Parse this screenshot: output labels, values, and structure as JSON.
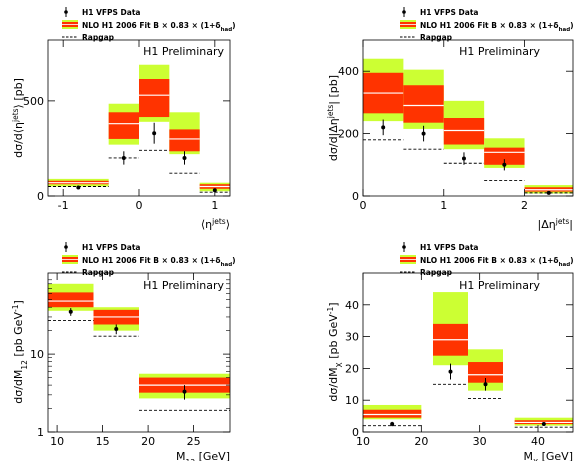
{
  "colors": {
    "outer_band": "#ccff33",
    "inner_band": "#ff3300",
    "central_line": "#ffffff",
    "data_marker": "#000000",
    "rapgap": "#000000"
  },
  "legend_labels": {
    "data": "H1 VFPS Data",
    "nlo": "NLO H1 2006 Fit B × 0.83 × (1+δ",
    "nlo_sub": "had",
    "nlo_close": ")",
    "rapgap": "Rapgap"
  },
  "chart_data": [
    {
      "id": "eta",
      "type": "histogram",
      "annotation": "H1 Preliminary",
      "xlabel": {
        "pre": "⟨η",
        "sup": "jets",
        "post": "⟩"
      },
      "ylabel": {
        "pre": "dσ/d⟨η",
        "sup": "jets",
        "post": "⟩ [pb]"
      },
      "xlim": [
        -1.2,
        1.2
      ],
      "ylim": [
        0,
        820
      ],
      "ylog": false,
      "xticks": [
        -1,
        0,
        1
      ],
      "yticks": [
        0,
        500
      ],
      "bins": [
        {
          "lo": -1.2,
          "hi": -0.4,
          "rapgap": 50,
          "nlo": 70,
          "nlo_lo2": 50,
          "nlo_hi2": 90,
          "nlo_lo1": 62,
          "nlo_hi1": 80,
          "data": 45,
          "err": 5
        },
        {
          "lo": -0.4,
          "hi": 0.0,
          "rapgap": 200,
          "nlo": 380,
          "nlo_lo2": 270,
          "nlo_hi2": 485,
          "nlo_lo1": 300,
          "nlo_hi1": 440,
          "data": 200,
          "err": 35
        },
        {
          "lo": 0.0,
          "hi": 0.4,
          "rapgap": 240,
          "nlo": 530,
          "nlo_lo2": 390,
          "nlo_hi2": 690,
          "nlo_lo1": 415,
          "nlo_hi1": 615,
          "data": 330,
          "err": 55
        },
        {
          "lo": 0.4,
          "hi": 0.8,
          "rapgap": 120,
          "nlo": 300,
          "nlo_lo2": 220,
          "nlo_hi2": 440,
          "nlo_lo1": 235,
          "nlo_hi1": 350,
          "data": 200,
          "err": 35
        },
        {
          "lo": 0.8,
          "hi": 1.2,
          "rapgap": 20,
          "nlo": 50,
          "nlo_lo2": 25,
          "nlo_hi2": 70,
          "nlo_lo1": 38,
          "nlo_hi1": 62,
          "data": 30,
          "err": 8
        }
      ]
    },
    {
      "id": "deta",
      "type": "histogram",
      "annotation": "H1 Preliminary",
      "xlabel": {
        "pre": "|Δη",
        "sup": "jets",
        "post": "|"
      },
      "ylabel": {
        "pre": "dσ/d|Δη",
        "sup": "jets",
        "post": "| [pb]"
      },
      "xlim": [
        0,
        2.6
      ],
      "ylim": [
        0,
        500
      ],
      "ylog": false,
      "xticks": [
        0,
        1,
        2
      ],
      "yticks": [
        0,
        200,
        400
      ],
      "bins": [
        {
          "lo": 0.0,
          "hi": 0.5,
          "rapgap": 180,
          "nlo": 330,
          "nlo_lo2": 240,
          "nlo_hi2": 440,
          "nlo_lo1": 265,
          "nlo_hi1": 395,
          "data": 220,
          "err": 25
        },
        {
          "lo": 0.5,
          "hi": 1.0,
          "rapgap": 150,
          "nlo": 290,
          "nlo_lo2": 215,
          "nlo_hi2": 405,
          "nlo_lo1": 235,
          "nlo_hi1": 355,
          "data": 200,
          "err": 25
        },
        {
          "lo": 1.0,
          "hi": 1.5,
          "rapgap": 105,
          "nlo": 210,
          "nlo_lo2": 150,
          "nlo_hi2": 305,
          "nlo_lo1": 165,
          "nlo_hi1": 250,
          "data": 120,
          "err": 20
        },
        {
          "lo": 1.5,
          "hi": 2.0,
          "rapgap": 50,
          "nlo": 140,
          "nlo_lo2": 90,
          "nlo_hi2": 185,
          "nlo_lo1": 100,
          "nlo_hi1": 155,
          "data": 100,
          "err": 18
        },
        {
          "lo": 2.0,
          "hi": 2.6,
          "rapgap": 10,
          "nlo": 20,
          "nlo_lo2": 8,
          "nlo_hi2": 35,
          "nlo_lo1": 14,
          "nlo_hi1": 28,
          "data": 10,
          "err": 4
        }
      ]
    },
    {
      "id": "m12",
      "type": "histogram",
      "annotation": "H1 Preliminary",
      "xlabel": {
        "pre": "M",
        "sub": "12",
        "post": " [GeV]"
      },
      "ylabel": {
        "pre": "dσ/dM",
        "sub": "12",
        "post": " [pb GeV",
        "sup": "-1",
        "post2": "]"
      },
      "xlim": [
        9,
        29
      ],
      "ylim": [
        1,
        110
      ],
      "ylog": true,
      "xticks": [
        10,
        15,
        20,
        25
      ],
      "yticks": [
        1,
        10
      ],
      "bins": [
        {
          "lo": 9,
          "hi": 14,
          "rapgap": 27,
          "nlo": 48,
          "nlo_lo2": 36,
          "nlo_hi2": 80,
          "nlo_lo1": 40,
          "nlo_hi1": 62,
          "data": 35,
          "err": 4
        },
        {
          "lo": 14,
          "hi": 19,
          "rapgap": 17,
          "nlo": 30,
          "nlo_lo2": 20,
          "nlo_hi2": 40,
          "nlo_lo1": 24,
          "nlo_hi1": 37,
          "data": 21,
          "err": 3
        },
        {
          "lo": 19,
          "hi": 29,
          "rapgap": 1.9,
          "nlo": 4.0,
          "nlo_lo2": 2.7,
          "nlo_hi2": 5.6,
          "nlo_lo1": 3.2,
          "nlo_hi1": 5.0,
          "data": 3.3,
          "err": 0.7
        }
      ]
    },
    {
      "id": "mx",
      "type": "histogram",
      "annotation": "H1 Preliminary",
      "xlabel": {
        "pre": "M",
        "sub": "X",
        "post": " [GeV]"
      },
      "ylabel": {
        "pre": "dσ/dM",
        "sub": "X",
        "post": " [pb GeV",
        "sup": "-1",
        "post2": "]"
      },
      "xlim": [
        10,
        46
      ],
      "ylim": [
        0,
        50
      ],
      "ylog": false,
      "xticks": [
        10,
        20,
        30,
        40
      ],
      "yticks": [
        0,
        10,
        20,
        30,
        40
      ],
      "bins": [
        {
          "lo": 10,
          "hi": 20,
          "rapgap": 2.0,
          "nlo": 5.5,
          "nlo_lo2": 4.0,
          "nlo_hi2": 8.5,
          "nlo_lo1": 4.5,
          "nlo_hi1": 7.0,
          "data": 2.5,
          "err": 0.7
        },
        {
          "lo": 22,
          "hi": 28,
          "rapgap": 15.0,
          "nlo": 29.0,
          "nlo_lo2": 21.0,
          "nlo_hi2": 44.0,
          "nlo_lo1": 24.0,
          "nlo_hi1": 34.0,
          "data": 19.0,
          "err": 2.5
        },
        {
          "lo": 28,
          "hi": 34,
          "rapgap": 10.5,
          "nlo": 18.0,
          "nlo_lo2": 13.0,
          "nlo_hi2": 26.0,
          "nlo_lo1": 15.5,
          "nlo_hi1": 22.0,
          "data": 15.0,
          "err": 2.0
        },
        {
          "lo": 36,
          "hi": 46,
          "rapgap": 1.5,
          "nlo": 3.0,
          "nlo_lo2": 2.0,
          "nlo_hi2": 4.5,
          "nlo_lo1": 2.5,
          "nlo_hi1": 3.7,
          "data": 2.5,
          "err": 0.6
        }
      ]
    }
  ]
}
